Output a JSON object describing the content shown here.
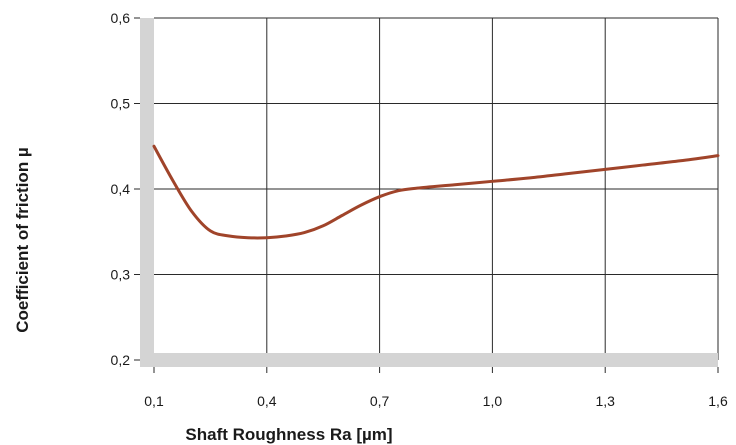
{
  "chart_data": {
    "type": "line",
    "title": "",
    "xlabel": "Shaft Roughness Ra [µm]",
    "ylabel": "Coefficient of friction µ",
    "x_tick_labels": [
      "0,1",
      "0,4",
      "0,7",
      "1,0",
      "1,3",
      "1,6"
    ],
    "x_ticks": [
      0.1,
      0.4,
      0.7,
      1.0,
      1.3,
      1.6
    ],
    "y_tick_labels": [
      "0,2",
      "0,3",
      "0,4",
      "0,5",
      "0,6"
    ],
    "y_ticks": [
      0.2,
      0.3,
      0.4,
      0.5,
      0.6
    ],
    "xlim": [
      0.1,
      1.6
    ],
    "ylim": [
      0.2,
      0.6
    ],
    "grid": true,
    "legend": "none",
    "series": [
      {
        "color": "#a0442a",
        "x": [
          0.1,
          0.15,
          0.2,
          0.25,
          0.3,
          0.35,
          0.4,
          0.45,
          0.5,
          0.55,
          0.6,
          0.65,
          0.7,
          0.75,
          0.8,
          0.9,
          1.0,
          1.1,
          1.2,
          1.3,
          1.4,
          1.5,
          1.6
        ],
        "y": [
          0.45,
          0.41,
          0.374,
          0.351,
          0.345,
          0.343,
          0.343,
          0.345,
          0.349,
          0.357,
          0.369,
          0.381,
          0.391,
          0.398,
          0.401,
          0.405,
          0.409,
          0.413,
          0.418,
          0.423,
          0.428,
          0.433,
          0.439
        ]
      }
    ]
  },
  "colors": {
    "curve": "#a0442a",
    "axis_band": "#d4d4d4",
    "grid": "#2a2a2a",
    "text": "#1a1a1a"
  }
}
